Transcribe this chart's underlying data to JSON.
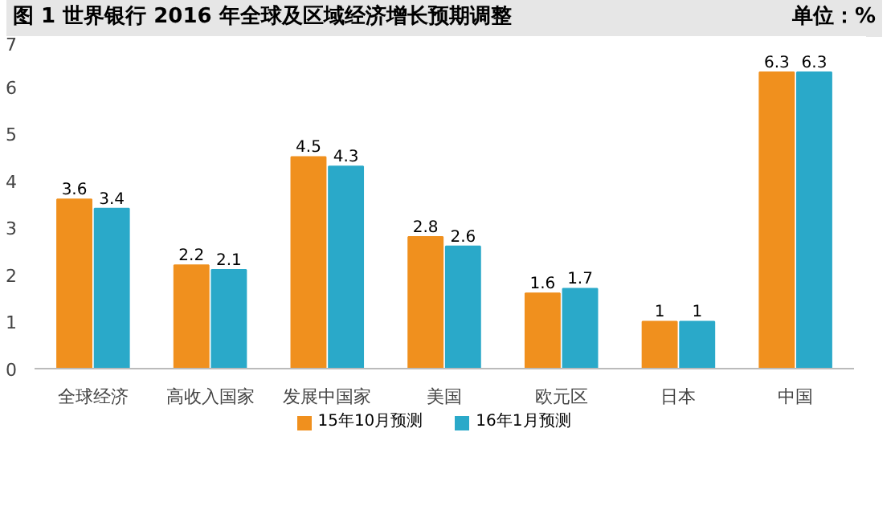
{
  "chart_data": {
    "type": "bar",
    "title": "图 1  世界银行 2016 年全球及区域经济增长预期调整",
    "annotations": [
      "单位：%"
    ],
    "categories": [
      "全球经济",
      "高收入国家",
      "发展中国家",
      "美国",
      "欧元区",
      "日本",
      "中国"
    ],
    "series": [
      {
        "name": "15年10月预测",
        "color": "#f0901e",
        "values": [
          3.6,
          2.2,
          4.5,
          2.8,
          1.6,
          1,
          6.3
        ]
      },
      {
        "name": "16年1月预测",
        "color": "#2aa9c9",
        "values": [
          3.4,
          2.1,
          4.3,
          2.6,
          1.7,
          1,
          6.3
        ]
      }
    ],
    "ylim": [
      0,
      7
    ],
    "yticks": [
      0,
      1,
      2,
      3,
      4,
      5,
      6,
      7
    ],
    "grid": false,
    "legend": "bottom",
    "data_labels": true
  }
}
